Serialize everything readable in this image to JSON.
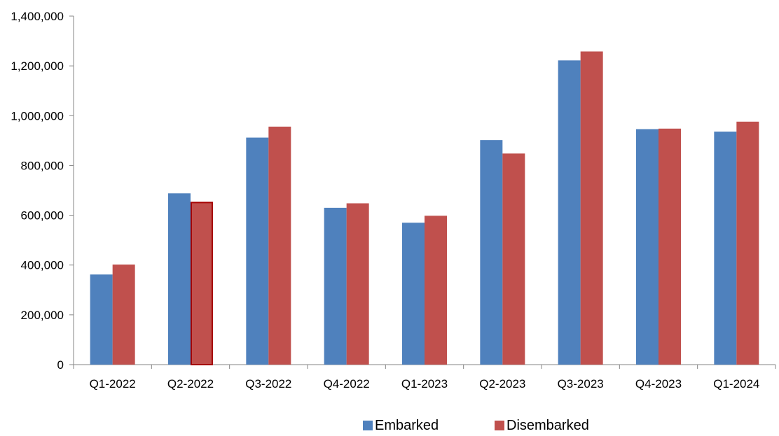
{
  "chart_data": {
    "type": "bar",
    "title": "",
    "xlabel": "",
    "ylabel": "",
    "categories": [
      "Q1-2022",
      "Q2-2022",
      "Q3-2022",
      "Q4-2022",
      "Q1-2023",
      "Q2-2023",
      "Q3-2023",
      "Q4-2023",
      "Q1-2024"
    ],
    "series": [
      {
        "name": "Embarked",
        "color": "#4f81bd",
        "values": [
          362000,
          688000,
          912000,
          630000,
          570000,
          902000,
          1222000,
          946000,
          936000
        ]
      },
      {
        "name": "Disembarked",
        "color": "#c0504d",
        "values": [
          402000,
          654000,
          956000,
          648000,
          598000,
          848000,
          1258000,
          948000,
          976000
        ]
      }
    ],
    "ylim": [
      0,
      1400000
    ],
    "yticks": [
      0,
      200000,
      400000,
      600000,
      800000,
      1000000,
      1200000,
      1400000
    ],
    "ytick_labels": [
      "0",
      "200,000",
      "400,000",
      "600,000",
      "800,000",
      "1,000,000",
      "1,200,000",
      "1,400,000"
    ],
    "grid": false,
    "legend_position": "bottom-center",
    "highlighted_bar": {
      "series": "Disembarked",
      "category": "Q2-2022",
      "outline_color": "#a50000"
    }
  }
}
